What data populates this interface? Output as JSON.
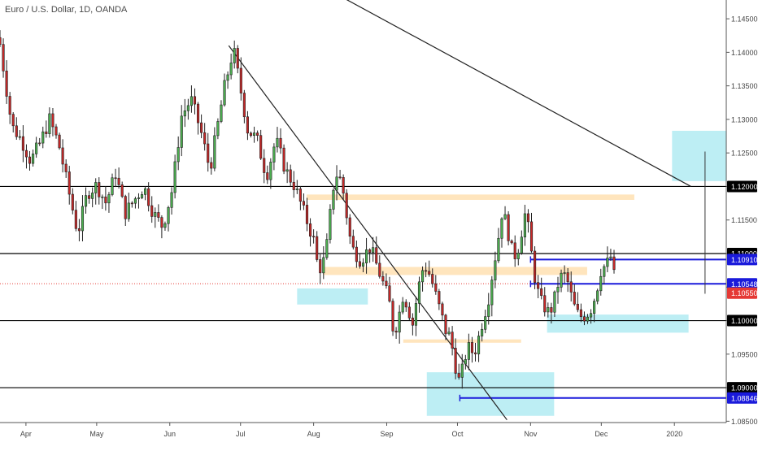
{
  "chart_data": {
    "type": "candlestick",
    "title": "Euro / U.S. Dollar, 1D, OANDA",
    "ylim": [
      1.0848,
      1.1478
    ],
    "y_ticks": [
      "1.14500",
      "1.14000",
      "1.13500",
      "1.13000",
      "1.12500",
      "1.12000",
      "1.11500",
      "1.11000",
      "1.10500",
      "1.10000",
      "1.09500",
      "1.09000",
      "1.08500"
    ],
    "y_tick_values": [
      1.145,
      1.14,
      1.135,
      1.13,
      1.125,
      1.12,
      1.115,
      1.11,
      1.105,
      1.1,
      1.095,
      1.09,
      1.085
    ],
    "x_labels": [
      {
        "label": "Apr",
        "day": 0
      },
      {
        "label": "May",
        "day": 30
      },
      {
        "label": "Jun",
        "day": 61
      },
      {
        "label": "Jul",
        "day": 91
      },
      {
        "label": "Aug",
        "day": 122
      },
      {
        "label": "Sep",
        "day": 153
      },
      {
        "label": "Oct",
        "day": 183
      },
      {
        "label": "Nov",
        "day": 214
      },
      {
        "label": "Dec",
        "day": 244
      },
      {
        "label": "2020",
        "day": 275
      }
    ],
    "x_range_days": [
      -11,
      297
    ],
    "price_anchors": [
      [
        -11,
        1.1412
      ],
      [
        -6,
        1.129
      ],
      [
        -2,
        1.127
      ],
      [
        2,
        1.1238
      ],
      [
        6,
        1.1265
      ],
      [
        10,
        1.13
      ],
      [
        14,
        1.1262
      ],
      [
        18,
        1.1195
      ],
      [
        22,
        1.113
      ],
      [
        26,
        1.119
      ],
      [
        30,
        1.1202
      ],
      [
        34,
        1.1175
      ],
      [
        38,
        1.122
      ],
      [
        42,
        1.116
      ],
      [
        46,
        1.118
      ],
      [
        50,
        1.12
      ],
      [
        54,
        1.116
      ],
      [
        58,
        1.114
      ],
      [
        62,
        1.1195
      ],
      [
        66,
        1.1305
      ],
      [
        70,
        1.133
      ],
      [
        74,
        1.1285
      ],
      [
        78,
        1.1225
      ],
      [
        82,
        1.1305
      ],
      [
        84,
        1.1345
      ],
      [
        86,
        1.1375
      ],
      [
        88,
        1.1405
      ],
      [
        90,
        1.1365
      ],
      [
        94,
        1.1285
      ],
      [
        98,
        1.127
      ],
      [
        102,
        1.1215
      ],
      [
        106,
        1.127
      ],
      [
        110,
        1.1225
      ],
      [
        114,
        1.12
      ],
      [
        118,
        1.116
      ],
      [
        122,
        1.112
      ],
      [
        124,
        1.1075
      ],
      [
        126,
        1.1085
      ],
      [
        128,
        1.112
      ],
      [
        130,
        1.1195
      ],
      [
        132,
        1.122
      ],
      [
        134,
        1.1205
      ],
      [
        138,
        1.111
      ],
      [
        142,
        1.109
      ],
      [
        146,
        1.111
      ],
      [
        150,
        1.107
      ],
      [
        154,
        1.103
      ],
      [
        156,
        1.098
      ],
      [
        158,
        1.1005
      ],
      [
        160,
        1.104
      ],
      [
        162,
        1.102
      ],
      [
        164,
        1.0995
      ],
      [
        166,
        1.104
      ],
      [
        168,
        1.1075
      ],
      [
        170,
        1.108
      ],
      [
        172,
        1.106
      ],
      [
        174,
        1.1035
      ],
      [
        176,
        1.101
      ],
      [
        178,
        1.0985
      ],
      [
        180,
        1.0975
      ],
      [
        182,
        1.0935
      ],
      [
        184,
        1.0905
      ],
      [
        186,
        1.0945
      ],
      [
        188,
        1.096
      ],
      [
        190,
        1.095
      ],
      [
        192,
        1.0975
      ],
      [
        194,
        1.1005
      ],
      [
        196,
        1.103
      ],
      [
        198,
        1.1075
      ],
      [
        200,
        1.1115
      ],
      [
        202,
        1.1165
      ],
      [
        204,
        1.114
      ],
      [
        206,
        1.1105
      ],
      [
        208,
        1.1095
      ],
      [
        210,
        1.113
      ],
      [
        212,
        1.1165
      ],
      [
        214,
        1.111
      ],
      [
        216,
        1.106
      ],
      [
        218,
        1.103
      ],
      [
        220,
        1.102
      ],
      [
        222,
        1.101
      ],
      [
        224,
        1.103
      ],
      [
        226,
        1.106
      ],
      [
        228,
        1.107
      ],
      [
        230,
        1.1055
      ],
      [
        232,
        1.1025
      ],
      [
        234,
        1.101
      ],
      [
        236,
        1.1005
      ],
      [
        238,
        1.101
      ],
      [
        240,
        1.102
      ],
      [
        242,
        1.1045
      ],
      [
        244,
        1.1078
      ],
      [
        246,
        1.1082
      ],
      [
        248,
        1.1095
      ],
      [
        250,
        1.1055
      ]
    ],
    "horizontal_levels": [
      {
        "name": "level-1.12000",
        "value": 1.12,
        "color": "#000000",
        "label": "1.12000",
        "badge_fg": "#ffffff",
        "badge_bg": "#000000"
      },
      {
        "name": "level-1.11000",
        "value": 1.11,
        "color": "#000000",
        "label": "1.11000",
        "badge_fg": "#ffffff",
        "badge_bg": "#000000"
      },
      {
        "name": "level-1.10000",
        "value": 1.1,
        "color": "#000000",
        "label": "1.10000",
        "badge_fg": "#ffffff",
        "badge_bg": "#000000"
      },
      {
        "name": "level-1.09000",
        "value": 1.09,
        "color": "#000000",
        "label": "1.09000",
        "badge_fg": "#ffffff",
        "badge_bg": "#000000"
      }
    ],
    "blue_levels": [
      {
        "name": "level-1.10910",
        "value": 1.1091,
        "from_day": 214,
        "label": "1.10910"
      },
      {
        "name": "level-1.10548",
        "value": 1.10548,
        "from_day": 214,
        "label": "1.10548"
      },
      {
        "name": "level-1.08846",
        "value": 1.08846,
        "from_day": 184,
        "label": "1.08846"
      }
    ],
    "current_price": {
      "value": 1.1055,
      "label": "1.10550",
      "color": "#e53935"
    },
    "trend_lines": [
      {
        "name": "trendline-short",
        "from": [
          86,
          1.141
        ],
        "to": [
          204,
          1.0852
        ]
      },
      {
        "name": "trendline-long",
        "from": [
          130,
          1.149
        ],
        "to": [
          282,
          1.12
        ]
      }
    ],
    "zones": [
      {
        "name": "zone-aug-support",
        "color": "#b2ebf2",
        "x": [
          115,
          145
        ],
        "y": [
          1.1024,
          1.1048
        ]
      },
      {
        "name": "zone-oct-low",
        "color": "#b2ebf2",
        "x": [
          170,
          224
        ],
        "y": [
          1.0858,
          1.0923
        ]
      },
      {
        "name": "zone-nov-support",
        "color": "#b2ebf2",
        "x": [
          221,
          281
        ],
        "y": [
          1.0982,
          1.1009
        ]
      },
      {
        "name": "zone-target",
        "color": "#b2ebf2",
        "x": [
          274,
          300
        ],
        "y": [
          1.1208,
          1.1283
        ]
      },
      {
        "name": "zone-resistance-1",
        "color": "#ffe0b2",
        "x": [
          119,
          258
        ],
        "y": [
          1.118,
          1.1188
        ]
      },
      {
        "name": "zone-resistance-2",
        "color": "#ffe0b2",
        "x": [
          126,
          238
        ],
        "y": [
          1.1068,
          1.108
        ]
      },
      {
        "name": "zone-resistance-3",
        "color": "#ffe0b2",
        "x": [
          160,
          210
        ],
        "y": [
          1.0967,
          1.0972
        ]
      }
    ],
    "projection": {
      "name": "projection-line",
      "x": 288,
      "y": [
        1.104,
        1.1252
      ]
    },
    "colors": {
      "up": "#4caf50",
      "down": "#c62828",
      "wick": "#222222",
      "blue": "#1a1adb",
      "axis_text": "#444444"
    },
    "grid": false
  }
}
